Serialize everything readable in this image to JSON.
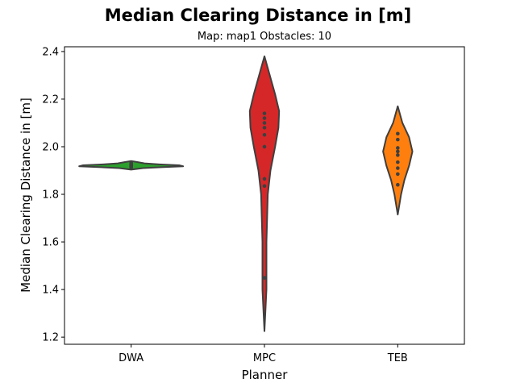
{
  "chart_data": {
    "type": "violin",
    "title": "Median Clearing Distance in [m]",
    "subtitle": "Map: map1 Obstacles: 10",
    "xlabel": "Planner",
    "ylabel": "Median Clearing Distance in [m]",
    "categories": [
      "DWA",
      "MPC",
      "TEB"
    ],
    "ylim": [
      1.17,
      2.42
    ],
    "yticks": [
      1.2,
      1.4,
      1.6,
      1.8,
      2.0,
      2.2,
      2.4
    ],
    "ytick_labels": [
      "1.2",
      "1.4",
      "1.6",
      "1.8",
      "2.0",
      "2.2",
      "2.4"
    ],
    "grid": false,
    "legend": "none",
    "series": [
      {
        "category": "DWA",
        "color": "#2ca02c",
        "profile": [
          [
            1.904,
            0.0
          ],
          [
            1.91,
            0.18
          ],
          [
            1.914,
            0.45
          ],
          [
            1.918,
            0.78
          ],
          [
            1.922,
            0.72
          ],
          [
            1.926,
            0.42
          ],
          [
            1.93,
            0.2
          ],
          [
            1.935,
            0.1
          ],
          [
            1.94,
            0.0
          ]
        ],
        "points": [
          1.912,
          1.916,
          1.918,
          1.921,
          1.924,
          1.928,
          1.933
        ]
      },
      {
        "category": "MPC",
        "color": "#d62728",
        "profile": [
          [
            1.225,
            0.0
          ],
          [
            1.4,
            0.03
          ],
          [
            1.6,
            0.03
          ],
          [
            1.8,
            0.05
          ],
          [
            1.9,
            0.09
          ],
          [
            2.0,
            0.16
          ],
          [
            2.08,
            0.21
          ],
          [
            2.15,
            0.22
          ],
          [
            2.22,
            0.16
          ],
          [
            2.3,
            0.08
          ],
          [
            2.38,
            0.0
          ]
        ],
        "points": [
          1.449,
          1.835,
          1.865,
          2.0,
          2.05,
          2.08,
          2.1,
          2.12,
          2.14
        ]
      },
      {
        "category": "TEB",
        "color": "#ff7f0e",
        "profile": [
          [
            1.715,
            0.0
          ],
          [
            1.8,
            0.05
          ],
          [
            1.86,
            0.1
          ],
          [
            1.92,
            0.17
          ],
          [
            1.98,
            0.22
          ],
          [
            2.04,
            0.17
          ],
          [
            2.1,
            0.07
          ],
          [
            2.17,
            0.0
          ]
        ],
        "points": [
          1.84,
          1.885,
          1.91,
          1.935,
          1.965,
          1.98,
          1.995,
          2.03,
          2.055
        ]
      }
    ]
  }
}
